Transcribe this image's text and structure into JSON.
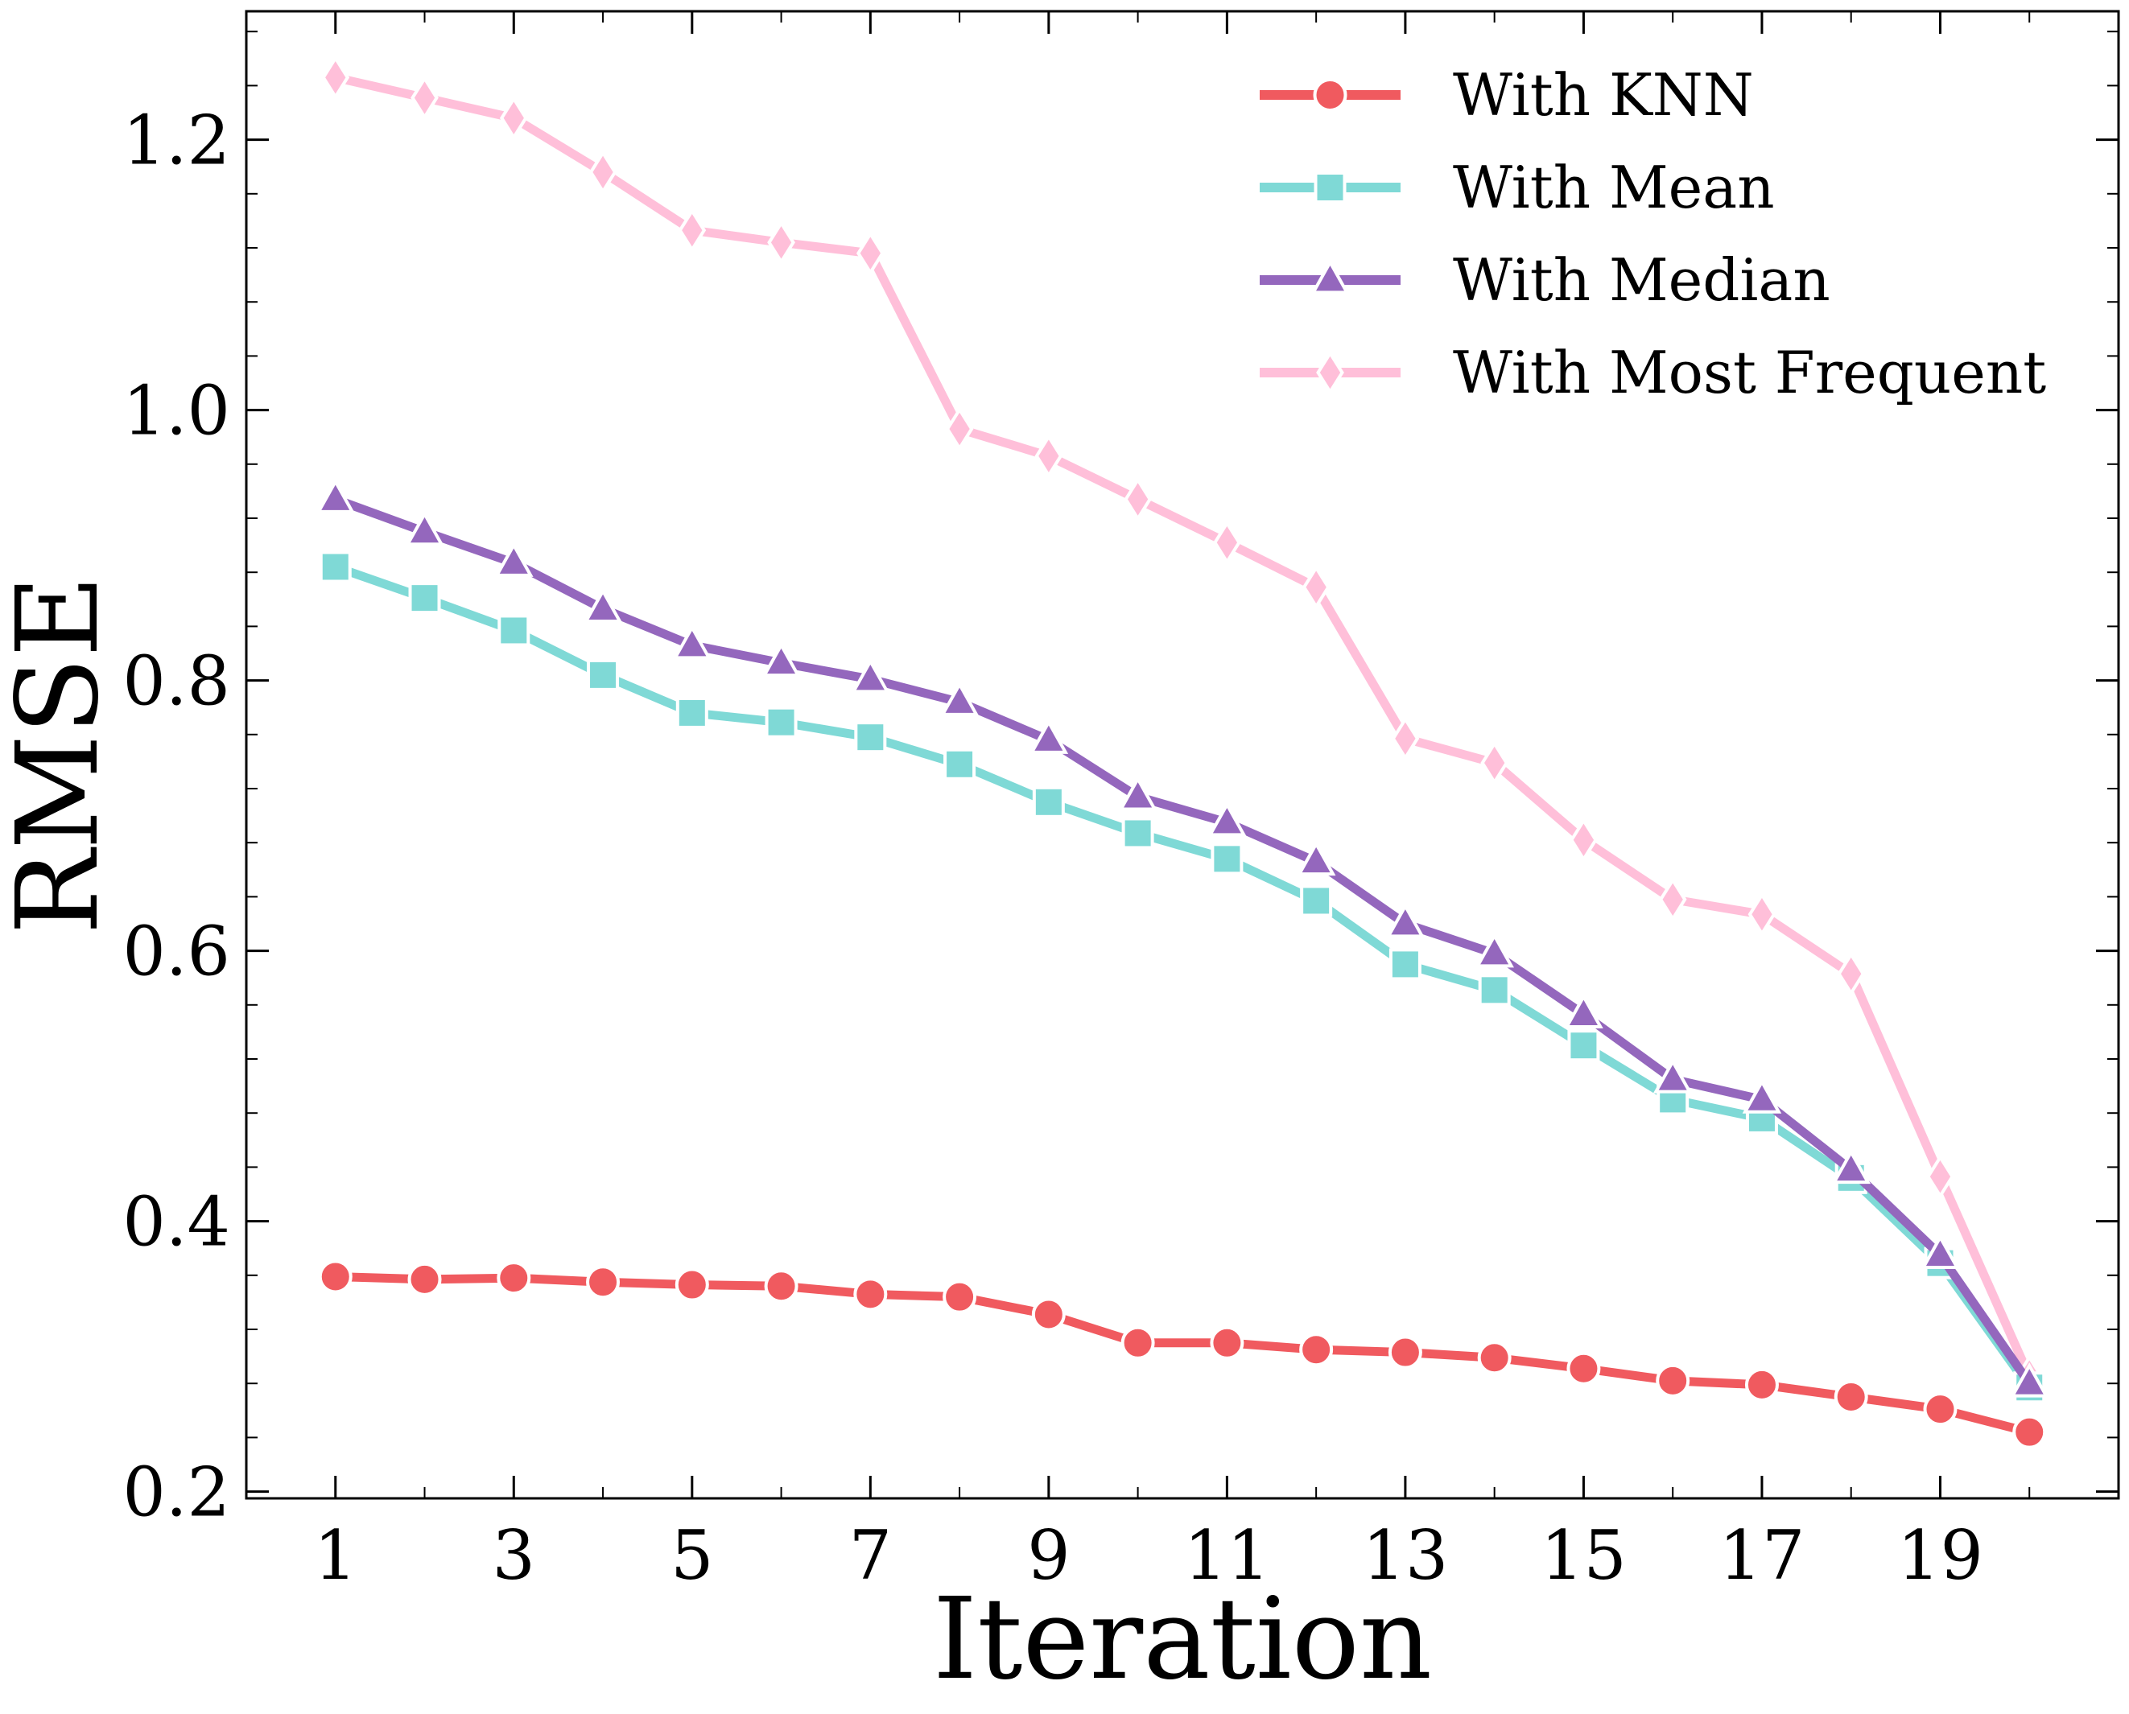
{
  "chart_data": {
    "type": "line",
    "title": "",
    "xlabel": "Iteration",
    "ylabel": "RMSE",
    "x": [
      1,
      2,
      3,
      4,
      5,
      6,
      7,
      8,
      9,
      10,
      11,
      12,
      13,
      14,
      15,
      16,
      17,
      18,
      19,
      20
    ],
    "x_tick_labels": [
      "1",
      "3",
      "5",
      "7",
      "9",
      "11",
      "13",
      "15",
      "17",
      "19"
    ],
    "x_tick_values": [
      1,
      3,
      5,
      7,
      9,
      11,
      13,
      15,
      17,
      19
    ],
    "y_tick_labels": [
      "0.2",
      "0.4",
      "0.6",
      "0.8",
      "1.0",
      "1.2"
    ],
    "y_tick_values": [
      0.2,
      0.4,
      0.6,
      0.8,
      1.0,
      1.2
    ],
    "xlim": [
      0.0,
      21.0
    ],
    "ylim": [
      0.195,
      1.295
    ],
    "grid": false,
    "legend_position": "top-right",
    "series": [
      {
        "name": "With KNN",
        "color": "#f05a5f",
        "marker": "circle",
        "values": [
          0.359,
          0.357,
          0.358,
          0.355,
          0.353,
          0.352,
          0.346,
          0.344,
          0.331,
          0.31,
          0.31,
          0.305,
          0.303,
          0.299,
          0.291,
          0.282,
          0.279,
          0.27,
          0.261,
          0.244
        ]
      },
      {
        "name": "With Mean",
        "color": "#7fd9d6",
        "marker": "square",
        "values": [
          0.884,
          0.861,
          0.837,
          0.804,
          0.776,
          0.769,
          0.758,
          0.738,
          0.71,
          0.687,
          0.668,
          0.637,
          0.59,
          0.571,
          0.53,
          0.49,
          0.476,
          0.432,
          0.369,
          0.277
        ]
      },
      {
        "name": "With Median",
        "color": "#9467bd",
        "marker": "triangle",
        "values": [
          0.934,
          0.91,
          0.887,
          0.853,
          0.826,
          0.813,
          0.801,
          0.784,
          0.756,
          0.714,
          0.695,
          0.666,
          0.62,
          0.598,
          0.553,
          0.505,
          0.49,
          0.438,
          0.375,
          0.28
        ]
      },
      {
        "name": "With Most Frequent",
        "color": "#ffbfd9",
        "marker": "diamond",
        "values": [
          1.246,
          1.231,
          1.216,
          1.176,
          1.133,
          1.124,
          1.116,
          0.986,
          0.966,
          0.934,
          0.902,
          0.869,
          0.757,
          0.739,
          0.682,
          0.638,
          0.627,
          0.583,
          0.433,
          0.285
        ]
      }
    ]
  }
}
